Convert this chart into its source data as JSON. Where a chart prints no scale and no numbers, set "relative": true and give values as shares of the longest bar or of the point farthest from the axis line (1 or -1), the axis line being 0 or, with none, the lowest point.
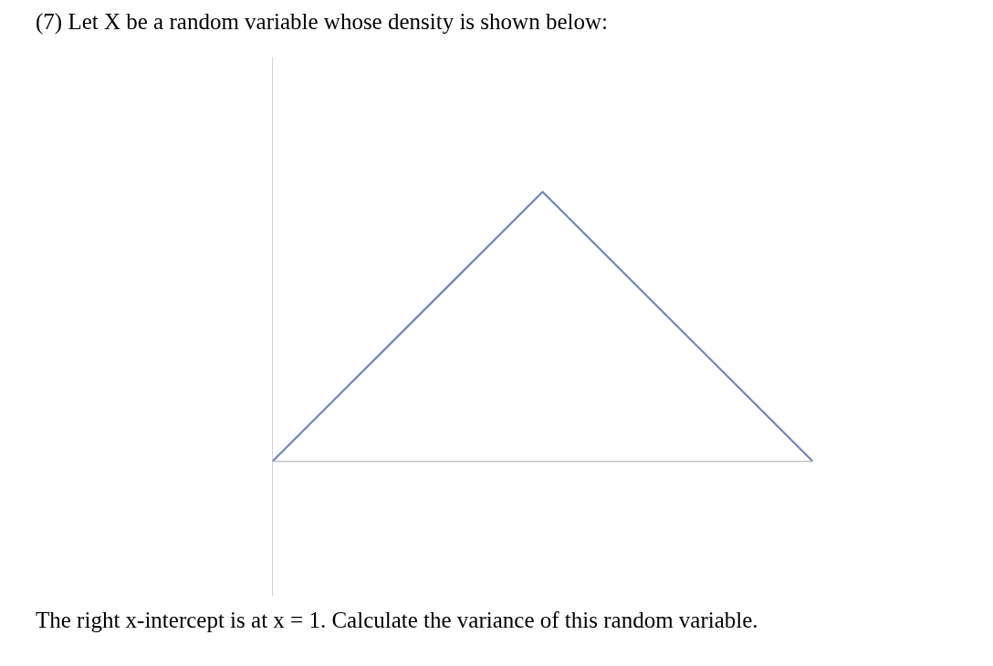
{
  "chart_data": {
    "type": "line",
    "title": "(7) Let X be a random variable whose density is shown below:",
    "annotations": [
      "The right x-intercept is at x = 1. Calculate the variance of this random variable."
    ],
    "categories": [
      null,
      null,
      null
    ],
    "relative": true,
    "series": [
      {
        "color": "#7086b4",
        "values": [
          0,
          1,
          0
        ]
      }
    ],
    "marker": "none",
    "line_style": "solid"
  }
}
